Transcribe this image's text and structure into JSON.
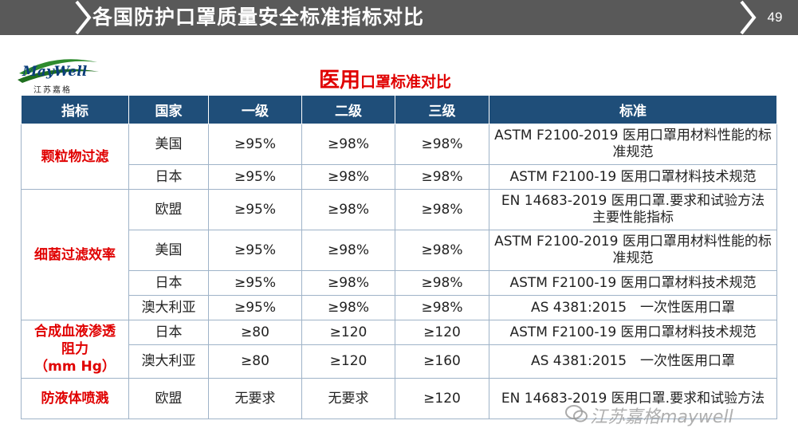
{
  "header": {
    "title": "各国防护口罩质量安全标准指标对比",
    "page_number": "49"
  },
  "logo": {
    "text": "MayWell",
    "caption": "江苏嘉格"
  },
  "subtitle": {
    "big": "医用",
    "small": "口罩标准对比"
  },
  "table": {
    "headers": [
      "指标",
      "国家",
      "一级",
      "二级",
      "三级",
      "标准"
    ],
    "rows": [
      {
        "metric": "颗粒物过滤",
        "country": "美国",
        "l1": "≥95%",
        "l2": "≥98%",
        "l3": "≥98%",
        "std": "ASTM F2100-2019 医用口罩用材料性能的标准规范"
      },
      {
        "country": "日本",
        "l1": "≥95%",
        "l2": "≥98%",
        "l3": "≥98%",
        "std": "ASTM F2100-19 医用口罩材料技术规范"
      },
      {
        "metric": "细菌过滤效率",
        "country": "欧盟",
        "l1": "≥95%",
        "l2": "≥98%",
        "l3": "≥98%",
        "std": "EN 14683-2019 医用口罩.要求和试验方法 主要性能指标"
      },
      {
        "country": "美国",
        "l1": "≥95%",
        "l2": "≥98%",
        "l3": "≥98%",
        "std": "ASTM F2100-2019 医用口罩用材料性能的标准规范"
      },
      {
        "country": "日本",
        "l1": "≥95%",
        "l2": "≥98%",
        "l3": "≥98%",
        "std": "ASTM F2100-19 医用口罩材料技术规范"
      },
      {
        "country": "澳大利亚",
        "l1": "≥95%",
        "l2": "≥98%",
        "l3": "≥98%",
        "std": "AS 4381:2015　一次性医用口罩"
      },
      {
        "metric": "合成血液渗透阻力（mm Hg）",
        "metric_line1": "合成血液渗透",
        "metric_line2": "阻力",
        "metric_line3": "（mm Hg）",
        "country": "日本",
        "l1": "≥80",
        "l2": "≥120",
        "l3": "≥120",
        "std": "ASTM F2100-19 医用口罩材料技术规范"
      },
      {
        "country": "澳大利亚",
        "l1": "≥80",
        "l2": "≥120",
        "l3": "≥160",
        "std": "AS 4381:2015　一次性医用口罩"
      },
      {
        "metric": "防液体喷溅",
        "country": "欧盟",
        "l1": "无要求",
        "l2": "无要求",
        "l3": "≥120",
        "std": "EN 14683-2019 医用口罩.要求和试验方法"
      }
    ]
  },
  "watermark": {
    "text": "江苏嘉格maywell"
  }
}
